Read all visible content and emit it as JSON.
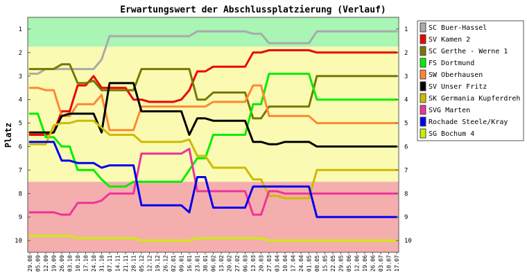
{
  "chart_data": {
    "type": "line",
    "title": "Erwartungswert der Abschlussplatzierung (Verlauf)",
    "xlabel": "",
    "ylabel": "Platz",
    "ylim": [
      10.5,
      0.5
    ],
    "y_ticks": [
      "1",
      "2",
      "3",
      "4",
      "5",
      "6",
      "7",
      "8",
      "9",
      "10"
    ],
    "x": [
      "29.08",
      "05.09",
      "12.09",
      "19.09",
      "26.09",
      "03.10",
      "10.10",
      "17.10",
      "24.10",
      "31.10",
      "07.11",
      "14.11",
      "21.11",
      "28.11",
      "05.12",
      "12.12",
      "19.12",
      "26.12",
      "02.01",
      "09.01",
      "16.01",
      "23.01",
      "30.01",
      "06.02",
      "13.02",
      "20.02",
      "27.02",
      "06.03",
      "13.03",
      "20.03",
      "27.03",
      "03.04",
      "10.04",
      "17.04",
      "24.04",
      "01.05",
      "08.05",
      "15.05",
      "22.05",
      "29.05",
      "05.06",
      "12.06",
      "19.06",
      "26.06",
      "03.07",
      "10.07",
      "17.07"
    ],
    "bands": [
      {
        "from": 0.5,
        "to": 1.75,
        "color": "#a9f5b4"
      },
      {
        "from": 1.75,
        "to": 7.5,
        "color": "#fafab2"
      },
      {
        "from": 7.5,
        "to": 10.5,
        "color": "#f5aeae"
      }
    ],
    "grid": false,
    "legend_position": "right",
    "series": [
      {
        "name": "SC Buer-Hassel",
        "color": "#aaaaaa",
        "values": [
          2.9,
          2.9,
          2.7,
          2.7,
          2.7,
          2.7,
          2.7,
          2.7,
          2.7,
          2.3,
          1.3,
          1.3,
          1.3,
          1.3,
          1.3,
          1.3,
          1.3,
          1.3,
          1.3,
          1.3,
          1.3,
          1.1,
          1.1,
          1.1,
          1.1,
          1.1,
          1.1,
          1.1,
          1.2,
          1.2,
          1.6,
          1.6,
          1.6,
          1.6,
          1.6,
          1.6,
          1.1,
          1.1,
          1.1,
          1.1,
          1.1,
          1.1,
          1.1,
          1.1,
          1.1,
          1.1,
          1.1
        ]
      },
      {
        "name": "SV Kamen 2",
        "color": "#ee0000",
        "values": [
          5.5,
          5.5,
          5.5,
          5.4,
          4.5,
          4.5,
          3.4,
          3.4,
          3.0,
          3.5,
          3.5,
          3.5,
          3.5,
          4.0,
          4.0,
          4.1,
          4.1,
          4.1,
          4.1,
          4.0,
          3.6,
          2.8,
          2.8,
          2.6,
          2.6,
          2.6,
          2.6,
          2.6,
          2.0,
          2.0,
          1.9,
          1.9,
          1.9,
          1.9,
          1.9,
          1.9,
          2.0,
          2.0,
          2.0,
          2.0,
          2.0,
          2.0,
          2.0,
          2.0,
          2.0,
          2.0,
          2.0
        ]
      },
      {
        "name": "SC Gerthe - Werne 1",
        "color": "#777700",
        "values": [
          2.7,
          2.7,
          2.7,
          2.7,
          2.5,
          2.5,
          3.3,
          3.3,
          3.2,
          3.6,
          3.6,
          3.6,
          3.6,
          3.6,
          2.7,
          2.7,
          2.7,
          2.7,
          2.7,
          2.7,
          2.7,
          4.0,
          4.0,
          3.7,
          3.7,
          3.7,
          3.7,
          3.7,
          4.8,
          4.8,
          4.3,
          4.3,
          4.3,
          4.3,
          4.3,
          4.3,
          3.0,
          3.0,
          3.0,
          3.0,
          3.0,
          3.0,
          3.0,
          3.0,
          3.0,
          3.0,
          3.0
        ]
      },
      {
        "name": "FS Dortmund",
        "color": "#00ee00",
        "values": [
          4.6,
          4.6,
          5.6,
          5.6,
          6.0,
          6.0,
          7.0,
          7.0,
          7.0,
          7.4,
          7.7,
          7.7,
          7.7,
          7.5,
          7.5,
          7.5,
          7.5,
          7.5,
          7.5,
          7.5,
          7.0,
          6.5,
          6.5,
          5.5,
          5.5,
          5.5,
          5.5,
          5.5,
          4.2,
          4.2,
          2.9,
          2.9,
          2.9,
          2.9,
          2.9,
          2.9,
          4.0,
          4.0,
          4.0,
          4.0,
          4.0,
          4.0,
          4.0,
          4.0,
          4.0,
          4.0,
          4.0
        ]
      },
      {
        "name": "SW Oberhausen",
        "color": "#ff8833",
        "values": [
          3.5,
          3.5,
          3.6,
          3.6,
          4.7,
          4.7,
          4.2,
          4.2,
          4.2,
          3.8,
          5.3,
          5.3,
          5.3,
          5.3,
          4.3,
          4.3,
          4.3,
          4.3,
          4.3,
          4.3,
          4.3,
          4.3,
          4.3,
          4.1,
          4.1,
          4.1,
          4.1,
          4.1,
          3.4,
          3.4,
          4.7,
          4.7,
          4.7,
          4.7,
          4.7,
          4.7,
          5.0,
          5.0,
          5.0,
          5.0,
          5.0,
          5.0,
          5.0,
          5.0,
          5.0,
          5.0,
          5.0
        ]
      },
      {
        "name": "SV Unser Fritz",
        "color": "#000000",
        "values": [
          5.4,
          5.4,
          5.4,
          5.4,
          4.7,
          4.6,
          4.6,
          4.6,
          4.6,
          5.4,
          3.3,
          3.3,
          3.3,
          3.3,
          4.5,
          4.5,
          4.5,
          4.5,
          4.5,
          4.5,
          5.5,
          4.8,
          4.8,
          4.9,
          4.9,
          4.9,
          4.9,
          4.9,
          5.8,
          5.8,
          5.9,
          5.9,
          5.8,
          5.8,
          5.8,
          5.8,
          6.0,
          6.0,
          6.0,
          6.0,
          6.0,
          6.0,
          6.0,
          6.0,
          6.0,
          6.0,
          6.0
        ]
      },
      {
        "name": "SK Germania Kupferdreh",
        "color": "#ccbb00",
        "values": [
          5.9,
          5.9,
          5.9,
          5.1,
          5.0,
          5.0,
          4.9,
          4.9,
          4.9,
          5.2,
          5.5,
          5.5,
          5.5,
          5.5,
          5.8,
          5.8,
          5.8,
          5.8,
          5.8,
          5.8,
          5.7,
          6.4,
          6.4,
          6.9,
          6.9,
          6.9,
          6.9,
          6.9,
          7.4,
          7.4,
          8.1,
          8.1,
          8.2,
          8.2,
          8.2,
          8.2,
          7.0,
          7.0,
          7.0,
          7.0,
          7.0,
          7.0,
          7.0,
          7.0,
          7.0,
          7.0,
          7.0
        ]
      },
      {
        "name": "SVG Marten",
        "color": "#ee3399",
        "values": [
          8.8,
          8.8,
          8.8,
          8.8,
          8.9,
          8.9,
          8.4,
          8.4,
          8.4,
          8.3,
          8.0,
          8.0,
          8.0,
          8.0,
          6.3,
          6.3,
          6.3,
          6.3,
          6.3,
          6.3,
          6.1,
          7.9,
          7.9,
          7.9,
          7.9,
          7.9,
          7.9,
          7.9,
          8.9,
          8.9,
          7.9,
          7.9,
          8.0,
          8.0,
          8.0,
          8.0,
          8.0,
          8.0,
          8.0,
          8.0,
          8.0,
          8.0,
          8.0,
          8.0,
          8.0,
          8.0,
          8.0
        ]
      },
      {
        "name": "Rochade Steele/Kray",
        "color": "#0000ee",
        "values": [
          5.8,
          5.8,
          5.8,
          5.8,
          6.6,
          6.6,
          6.7,
          6.7,
          6.7,
          6.9,
          6.8,
          6.8,
          6.8,
          6.8,
          8.5,
          8.5,
          8.5,
          8.5,
          8.5,
          8.5,
          8.8,
          7.3,
          7.3,
          8.6,
          8.6,
          8.6,
          8.6,
          8.6,
          7.7,
          7.7,
          7.7,
          7.7,
          7.7,
          7.7,
          7.7,
          7.7,
          9.0,
          9.0,
          9.0,
          9.0,
          9.0,
          9.0,
          9.0,
          9.0,
          9.0,
          9.0,
          9.0
        ]
      },
      {
        "name": "SG Bochum 4",
        "color": "#ccee00",
        "values": [
          9.8,
          9.8,
          9.8,
          9.8,
          9.8,
          9.8,
          9.9,
          9.9,
          9.9,
          9.9,
          9.9,
          9.9,
          9.9,
          9.9,
          10.0,
          10.0,
          10.0,
          10.0,
          10.0,
          10.0,
          10.0,
          9.9,
          9.9,
          9.9,
          9.9,
          9.9,
          9.9,
          9.9,
          9.9,
          9.9,
          10.0,
          10.0,
          10.0,
          10.0,
          10.0,
          10.0,
          10.0,
          10.0,
          10.0,
          10.0,
          10.0,
          10.0,
          10.0,
          10.0,
          10.0,
          10.0,
          10.0
        ]
      }
    ]
  }
}
